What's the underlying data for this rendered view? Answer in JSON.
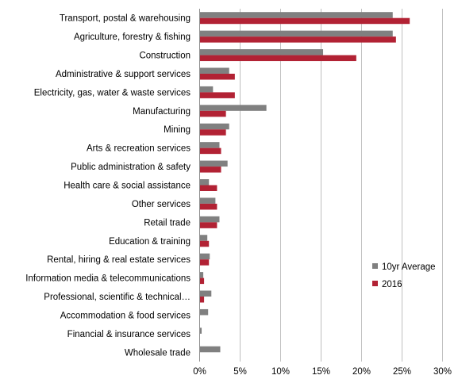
{
  "chart_data": {
    "type": "bar",
    "orientation": "horizontal",
    "categories": [
      "Transport, postal & warehousing",
      "Agriculture, forestry & fishing",
      "Construction",
      "Administrative & support services",
      "Electricity, gas, water & waste services",
      "Manufacturing",
      "Mining",
      "Arts & recreation services",
      "Public administration & safety",
      "Health care & social assistance",
      "Other services",
      "Retail trade",
      "Education & training",
      "Rental, hiring & real estate services",
      "Information media & telecommunications",
      "Professional, scientific & technical…",
      "Accommodation & food services",
      "Financial & insurance services",
      "Wholesale trade"
    ],
    "series": [
      {
        "name": "10yr Average",
        "color": "#808080",
        "values": [
          23.8,
          23.8,
          15.2,
          3.6,
          1.6,
          8.2,
          3.6,
          2.4,
          3.4,
          1.1,
          1.9,
          2.4,
          0.9,
          1.2,
          0.4,
          1.4,
          1.0,
          0.2,
          2.5
        ]
      },
      {
        "name": "2016",
        "color": "#b22234",
        "values": [
          25.9,
          24.2,
          19.3,
          4.3,
          4.3,
          3.2,
          3.2,
          2.6,
          2.6,
          2.1,
          2.1,
          2.1,
          1.1,
          1.1,
          0.5,
          0.5,
          0.0,
          0.0,
          0.0
        ]
      }
    ],
    "xlim": [
      0,
      30
    ],
    "xticks": [
      0,
      5,
      10,
      15,
      20,
      25,
      30
    ],
    "tick_suffix": "%",
    "grid": true,
    "legend_position": "bottom-right",
    "title": "",
    "xlabel": "",
    "ylabel": ""
  }
}
